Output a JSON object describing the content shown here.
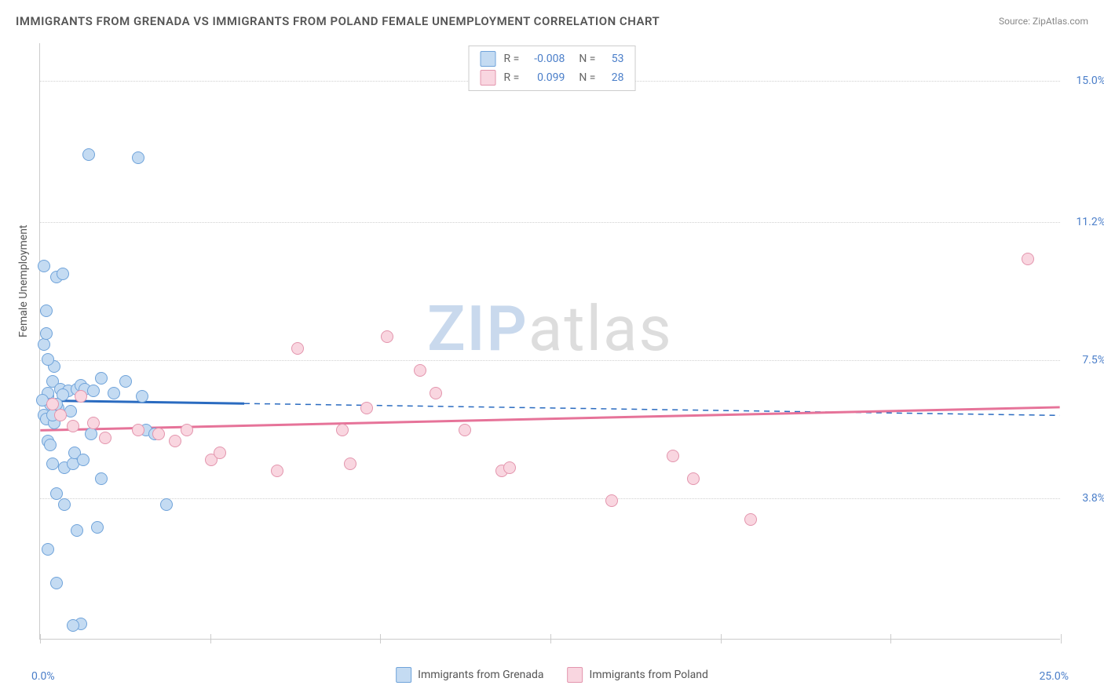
{
  "title": "IMMIGRANTS FROM GRENADA VS IMMIGRANTS FROM POLAND FEMALE UNEMPLOYMENT CORRELATION CHART",
  "source_label": "Source:",
  "source_name": "ZipAtlas.com",
  "y_axis_label": "Female Unemployment",
  "x_min_label": "0.0%",
  "x_max_label": "25.0%",
  "watermark_a": "ZIP",
  "watermark_b": "atlas",
  "chart": {
    "type": "scatter",
    "background_color": "#ffffff",
    "grid_color": "#d0d0d0",
    "axis_color": "#cccccc",
    "xlim": [
      0,
      25
    ],
    "ylim": [
      0,
      16
    ],
    "y_ticks": [
      {
        "v": 3.8,
        "label": "3.8%"
      },
      {
        "v": 7.5,
        "label": "7.5%"
      },
      {
        "v": 11.2,
        "label": "11.2%"
      },
      {
        "v": 15.0,
        "label": "15.0%"
      }
    ],
    "x_ticks_at": [
      0,
      4.17,
      8.33,
      12.5,
      16.67,
      20.83,
      25
    ],
    "series": [
      {
        "key": "grenada",
        "label": "Immigrants from Grenada",
        "fill": "#c4dbf2",
        "stroke": "#6fa3da",
        "trend_color": "#2a6bc0",
        "R": "-0.008",
        "N": "53",
        "trend": {
          "x1": 0,
          "y1": 6.4,
          "x2_solid": 5.0,
          "x2": 25,
          "y2": 6.0
        },
        "points": [
          [
            0.2,
            6.5
          ],
          [
            0.2,
            6.6
          ],
          [
            0.3,
            6.9
          ],
          [
            0.35,
            7.3
          ],
          [
            0.1,
            7.9
          ],
          [
            0.15,
            8.8
          ],
          [
            0.4,
            9.7
          ],
          [
            0.55,
            9.8
          ],
          [
            0.1,
            10.0
          ],
          [
            1.2,
            13.0
          ],
          [
            2.4,
            12.9
          ],
          [
            0.1,
            6.0
          ],
          [
            0.2,
            5.3
          ],
          [
            0.25,
            5.2
          ],
          [
            0.3,
            4.7
          ],
          [
            0.6,
            4.6
          ],
          [
            0.8,
            4.7
          ],
          [
            1.5,
            4.3
          ],
          [
            0.4,
            3.9
          ],
          [
            0.6,
            3.6
          ],
          [
            1.4,
            3.0
          ],
          [
            0.2,
            2.4
          ],
          [
            0.9,
            2.9
          ],
          [
            0.4,
            1.5
          ],
          [
            1.0,
            0.4
          ],
          [
            0.8,
            0.35
          ],
          [
            0.5,
            6.7
          ],
          [
            0.7,
            6.65
          ],
          [
            0.9,
            6.7
          ],
          [
            1.0,
            6.8
          ],
          [
            1.1,
            6.7
          ],
          [
            1.3,
            6.65
          ],
          [
            1.5,
            7.0
          ],
          [
            1.8,
            6.6
          ],
          [
            2.1,
            6.9
          ],
          [
            2.5,
            6.5
          ],
          [
            2.6,
            5.6
          ],
          [
            2.8,
            5.5
          ],
          [
            3.1,
            3.6
          ],
          [
            0.15,
            5.9
          ],
          [
            0.35,
            5.8
          ],
          [
            0.25,
            6.3
          ],
          [
            0.45,
            6.2
          ],
          [
            0.05,
            6.4
          ],
          [
            0.55,
            6.55
          ],
          [
            0.75,
            6.1
          ],
          [
            0.85,
            5.0
          ],
          [
            1.05,
            4.8
          ],
          [
            1.25,
            5.5
          ],
          [
            0.2,
            7.5
          ],
          [
            0.15,
            8.2
          ],
          [
            0.3,
            6.0
          ],
          [
            0.4,
            6.3
          ]
        ]
      },
      {
        "key": "poland",
        "label": "Immigrants from Poland",
        "fill": "#f9d6e0",
        "stroke": "#e395ad",
        "trend_color": "#e67399",
        "R": "0.099",
        "N": "28",
        "trend": {
          "x1": 0,
          "y1": 5.6,
          "x2_solid": 25,
          "x2": 25,
          "y2": 6.22
        },
        "points": [
          [
            0.5,
            6.0
          ],
          [
            0.8,
            5.7
          ],
          [
            1.0,
            6.5
          ],
          [
            1.3,
            5.8
          ],
          [
            1.6,
            5.4
          ],
          [
            2.4,
            5.6
          ],
          [
            2.9,
            5.5
          ],
          [
            3.3,
            5.3
          ],
          [
            3.6,
            5.6
          ],
          [
            4.2,
            4.8
          ],
          [
            4.4,
            5.0
          ],
          [
            5.8,
            4.5
          ],
          [
            6.3,
            7.8
          ],
          [
            7.4,
            5.6
          ],
          [
            7.6,
            4.7
          ],
          [
            8.0,
            6.2
          ],
          [
            8.5,
            8.1
          ],
          [
            9.3,
            7.2
          ],
          [
            9.7,
            6.6
          ],
          [
            10.4,
            5.6
          ],
          [
            11.3,
            4.5
          ],
          [
            11.5,
            4.6
          ],
          [
            14.0,
            3.7
          ],
          [
            15.5,
            4.9
          ],
          [
            16.0,
            4.3
          ],
          [
            17.4,
            3.2
          ],
          [
            24.2,
            10.2
          ],
          [
            0.3,
            6.3
          ]
        ]
      }
    ]
  },
  "stats_box": {
    "R_label": "R =",
    "N_label": "N ="
  }
}
